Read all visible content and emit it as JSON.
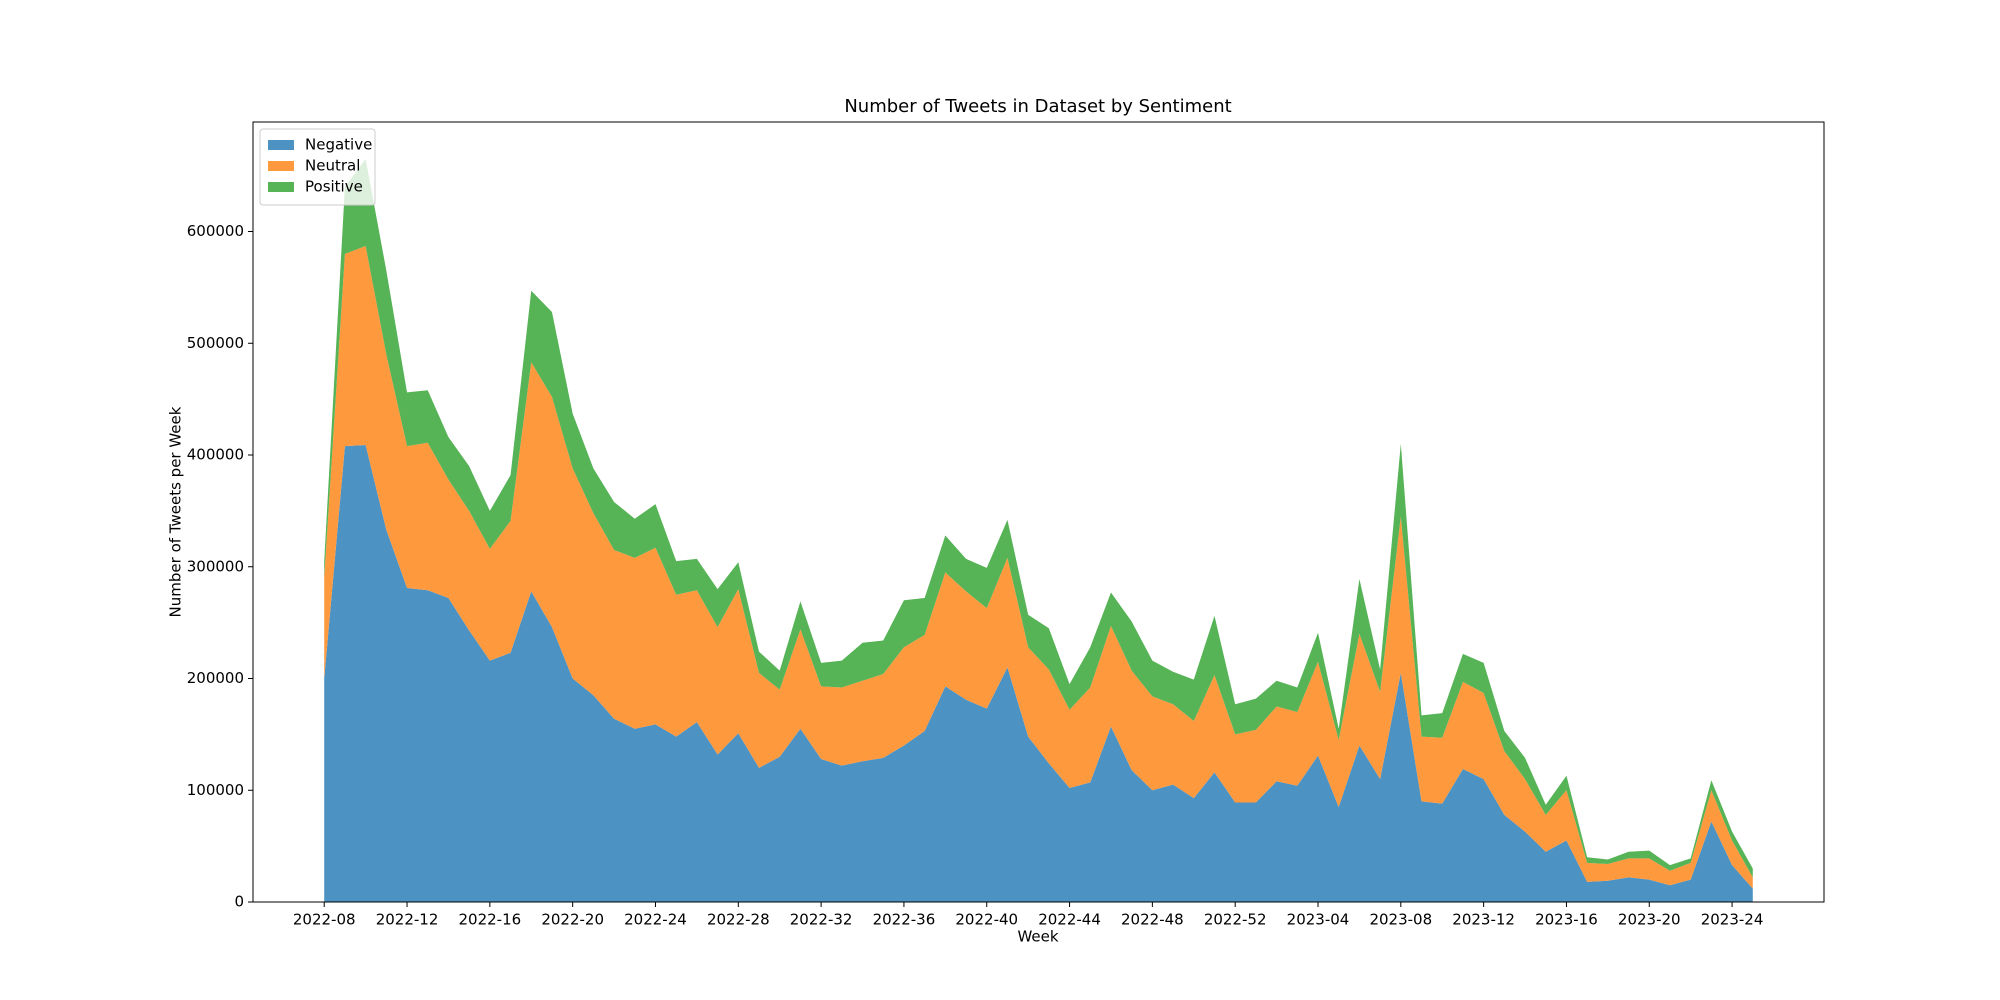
{
  "chart_data": {
    "type": "stacked_area",
    "title": "Number of Tweets in Dataset by Sentiment",
    "x_label": "Week",
    "y_label": "Number of Tweets per Week",
    "categories": [
      "2022-08",
      null,
      null,
      null,
      "2022-12",
      null,
      null,
      null,
      "2022-16",
      null,
      null,
      null,
      "2022-20",
      null,
      null,
      null,
      "2022-24",
      null,
      null,
      null,
      "2022-28",
      null,
      null,
      null,
      "2022-32",
      null,
      null,
      null,
      "2022-36",
      null,
      null,
      null,
      "2022-40",
      null,
      null,
      null,
      "2022-44",
      null,
      null,
      null,
      "2022-48",
      null,
      null,
      null,
      "2022-52",
      null,
      null,
      null,
      "2023-04",
      null,
      null,
      null,
      "2023-08",
      null,
      null,
      null,
      "2023-12",
      null,
      null,
      null,
      "2023-16",
      null,
      null,
      null,
      "2023-20",
      null,
      null,
      null,
      "2023-24",
      null
    ],
    "series": [
      {
        "name": "Negative",
        "color": "#4c92c3",
        "values": [
          200000,
          408000,
          409000,
          333000,
          281000,
          279000,
          272000,
          243000,
          216000,
          223000,
          278000,
          246000,
          200000,
          185000,
          164000,
          155000,
          159000,
          148000,
          161000,
          132000,
          151000,
          120000,
          130000,
          155000,
          128000,
          122000,
          126000,
          129000,
          140000,
          153000,
          193000,
          181000,
          173000,
          210000,
          148000,
          124000,
          102000,
          107000,
          157000,
          118000,
          100000,
          105000,
          93000,
          116000,
          89000,
          89000,
          108000,
          104000,
          131000,
          85000,
          140000,
          110000,
          205000,
          90000,
          88000,
          119000,
          110000,
          78000,
          63000,
          45000,
          55000,
          18000,
          19000,
          22000,
          20000,
          15000,
          20000,
          72000,
          33000,
          12000
        ]
      },
      {
        "name": "Neutral",
        "color": "#ff993e",
        "values": [
          90000,
          172000,
          178000,
          157000,
          127000,
          132000,
          106000,
          107000,
          100000,
          118000,
          205000,
          206000,
          188000,
          163000,
          151000,
          153000,
          158000,
          127000,
          118000,
          114000,
          129000,
          85000,
          60000,
          89000,
          65000,
          70000,
          72000,
          75000,
          88000,
          86000,
          102000,
          97000,
          90000,
          98000,
          80000,
          84000,
          70000,
          85000,
          90000,
          89000,
          84000,
          72000,
          69000,
          87000,
          61000,
          65000,
          67000,
          66000,
          84000,
          60000,
          100000,
          78000,
          140000,
          58000,
          59000,
          78000,
          77000,
          57000,
          47000,
          33000,
          45000,
          17000,
          15000,
          17000,
          19000,
          13000,
          15000,
          28000,
          22000,
          10000
        ]
      },
      {
        "name": "Positive",
        "color": "#56b356",
        "values": [
          15000,
          60000,
          78000,
          75000,
          48000,
          47000,
          38000,
          40000,
          34000,
          41000,
          64000,
          76000,
          49000,
          40000,
          43000,
          35000,
          39000,
          30000,
          28000,
          34000,
          24000,
          19000,
          17000,
          25000,
          21000,
          24000,
          34000,
          30000,
          42000,
          33000,
          33000,
          29000,
          36000,
          34000,
          29000,
          37000,
          23000,
          36000,
          30000,
          44000,
          32000,
          29000,
          37000,
          53000,
          27000,
          28000,
          23000,
          22000,
          26000,
          10000,
          49000,
          20000,
          65000,
          19000,
          22000,
          25000,
          27000,
          18000,
          19000,
          9000,
          13000,
          5000,
          4000,
          6000,
          7000,
          5000,
          4000,
          9000,
          8000,
          8000
        ]
      }
    ],
    "ylim": [
      0,
      698000
    ],
    "yticks": [
      0,
      100000,
      200000,
      300000,
      400000,
      500000,
      600000
    ],
    "grid": false,
    "legend": "upper left"
  }
}
